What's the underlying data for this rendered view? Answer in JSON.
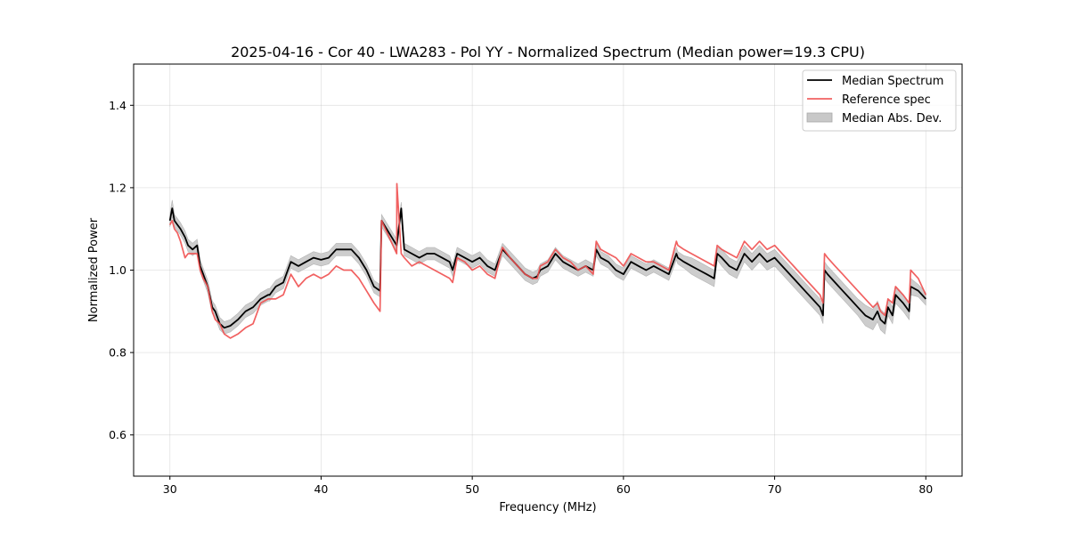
{
  "chart_data": {
    "type": "line",
    "title": "2025-04-16 - Cor 40 - LWA283 - Pol YY - Normalized Spectrum (Median power=19.3 CPU)",
    "xlabel": "Frequency (MHz)",
    "ylabel": "Normalized Power",
    "xlim": [
      27.6,
      82.4
    ],
    "ylim": [
      0.5,
      1.5
    ],
    "xticks": [
      30,
      40,
      50,
      60,
      70,
      80
    ],
    "yticks": [
      0.6,
      0.8,
      1.0,
      1.2,
      1.4
    ],
    "xtick_labels": [
      "30",
      "40",
      "50",
      "60",
      "70",
      "80"
    ],
    "ytick_labels": [
      "0.6",
      "0.8",
      "1.0",
      "1.2",
      "1.4"
    ],
    "grid": true,
    "legend": {
      "placement": "upper-right",
      "entries": [
        "Median Spectrum",
        "Reference spec",
        "Median Abs. Dev."
      ]
    },
    "colors": {
      "median": "#000000",
      "reference": "#f05050",
      "mad_band": "#c8c8c8"
    },
    "series": [
      {
        "name": "Median Spectrum",
        "x": [
          30.0,
          30.15,
          30.3,
          30.5,
          30.7,
          31.0,
          31.2,
          31.5,
          31.8,
          32.0,
          32.2,
          32.5,
          32.8,
          33.0,
          33.3,
          33.6,
          34.0,
          34.5,
          35.0,
          35.5,
          36.0,
          36.5,
          36.6,
          37.0,
          37.5,
          37.6,
          38.0,
          38.5,
          39.0,
          39.5,
          40.0,
          40.5,
          41.0,
          41.5,
          42.0,
          42.5,
          43.0,
          43.5,
          43.9,
          44.0,
          44.5,
          45.0,
          45.3,
          45.5,
          46.0,
          46.5,
          47.0,
          47.5,
          48.0,
          48.5,
          48.7,
          49.0,
          49.5,
          50.0,
          50.5,
          51.0,
          51.5,
          52.0,
          52.5,
          53.0,
          53.5,
          54.0,
          54.3,
          54.5,
          55.0,
          55.5,
          56.0,
          56.5,
          57.0,
          57.5,
          58.0,
          58.2,
          58.5,
          59.0,
          59.5,
          60.0,
          60.5,
          61.0,
          61.5,
          62.0,
          62.5,
          63.0,
          63.5,
          63.6,
          64.0,
          64.5,
          65.0,
          65.5,
          66.0,
          66.2,
          66.5,
          67.0,
          67.5,
          68.0,
          68.5,
          69.0,
          69.5,
          70.0,
          70.5,
          71.0,
          71.5,
          72.0,
          72.5,
          73.0,
          73.2,
          73.3,
          73.5,
          74.0,
          74.5,
          75.0,
          75.5,
          76.0,
          76.5,
          76.8,
          77.0,
          77.3,
          77.5,
          77.8,
          78.0,
          78.5,
          78.9,
          79.0,
          79.5,
          80.0
        ],
        "y": [
          1.12,
          1.15,
          1.12,
          1.11,
          1.1,
          1.08,
          1.06,
          1.05,
          1.06,
          1.01,
          0.99,
          0.96,
          0.91,
          0.9,
          0.87,
          0.86,
          0.865,
          0.88,
          0.9,
          0.91,
          0.93,
          0.94,
          0.94,
          0.96,
          0.97,
          0.98,
          1.02,
          1.01,
          1.02,
          1.03,
          1.025,
          1.03,
          1.05,
          1.05,
          1.05,
          1.03,
          1.0,
          0.96,
          0.95,
          1.12,
          1.09,
          1.06,
          1.15,
          1.05,
          1.04,
          1.03,
          1.04,
          1.04,
          1.03,
          1.02,
          1.0,
          1.04,
          1.03,
          1.02,
          1.03,
          1.01,
          1.0,
          1.05,
          1.03,
          1.01,
          0.99,
          0.98,
          0.985,
          1.0,
          1.01,
          1.04,
          1.02,
          1.01,
          1.0,
          1.01,
          1.0,
          1.05,
          1.03,
          1.02,
          1.0,
          0.99,
          1.02,
          1.01,
          1.0,
          1.01,
          1.0,
          0.99,
          1.04,
          1.03,
          1.02,
          1.01,
          1.0,
          0.99,
          0.98,
          1.04,
          1.03,
          1.01,
          1.0,
          1.04,
          1.02,
          1.04,
          1.02,
          1.03,
          1.01,
          0.99,
          0.97,
          0.95,
          0.93,
          0.91,
          0.89,
          1.0,
          0.99,
          0.97,
          0.95,
          0.93,
          0.91,
          0.89,
          0.88,
          0.9,
          0.88,
          0.87,
          0.91,
          0.89,
          0.94,
          0.92,
          0.9,
          0.96,
          0.95,
          0.93
        ]
      },
      {
        "name": "Reference spec",
        "x": [
          30.0,
          30.15,
          30.3,
          30.5,
          30.7,
          31.0,
          31.2,
          31.5,
          31.8,
          32.0,
          32.2,
          32.5,
          32.8,
          33.0,
          33.3,
          33.6,
          34.0,
          34.5,
          35.0,
          35.5,
          36.0,
          36.5,
          36.6,
          37.0,
          37.5,
          37.6,
          38.0,
          38.5,
          39.0,
          39.5,
          40.0,
          40.5,
          41.0,
          41.5,
          42.0,
          42.5,
          43.0,
          43.5,
          43.9,
          44.0,
          44.5,
          45.0,
          45.01,
          45.3,
          45.5,
          46.0,
          46.5,
          47.0,
          47.5,
          48.0,
          48.5,
          48.7,
          49.0,
          49.5,
          50.0,
          50.5,
          51.0,
          51.5,
          52.0,
          52.5,
          53.0,
          53.5,
          54.0,
          54.3,
          54.5,
          55.0,
          55.5,
          56.0,
          56.5,
          57.0,
          57.5,
          58.0,
          58.2,
          58.5,
          59.0,
          59.5,
          60.0,
          60.5,
          61.0,
          61.5,
          62.0,
          62.5,
          63.0,
          63.5,
          63.6,
          64.0,
          64.5,
          65.0,
          65.5,
          66.0,
          66.2,
          66.5,
          67.0,
          67.5,
          68.0,
          68.5,
          69.0,
          69.5,
          70.0,
          70.5,
          71.0,
          71.5,
          72.0,
          72.5,
          73.0,
          73.2,
          73.3,
          73.5,
          74.0,
          74.5,
          75.0,
          75.5,
          76.0,
          76.5,
          76.8,
          77.0,
          77.3,
          77.5,
          77.8,
          78.0,
          78.5,
          78.9,
          79.0,
          79.5,
          80.0
        ],
        "y": [
          1.11,
          1.12,
          1.1,
          1.09,
          1.07,
          1.03,
          1.04,
          1.04,
          1.04,
          1.0,
          0.98,
          0.96,
          0.9,
          0.88,
          0.87,
          0.845,
          0.835,
          0.845,
          0.86,
          0.87,
          0.92,
          0.93,
          0.93,
          0.93,
          0.94,
          0.95,
          0.99,
          0.96,
          0.98,
          0.99,
          0.98,
          0.99,
          1.01,
          1.0,
          1.0,
          0.98,
          0.95,
          0.92,
          0.9,
          1.12,
          1.08,
          1.04,
          1.21,
          1.04,
          1.03,
          1.01,
          1.02,
          1.01,
          1.0,
          0.99,
          0.98,
          0.97,
          1.03,
          1.02,
          1.0,
          1.01,
          0.99,
          0.98,
          1.055,
          1.03,
          1.01,
          0.99,
          0.98,
          0.98,
          1.01,
          1.02,
          1.05,
          1.03,
          1.02,
          1.0,
          1.01,
          0.99,
          1.07,
          1.05,
          1.04,
          1.03,
          1.01,
          1.04,
          1.03,
          1.02,
          1.02,
          1.01,
          1.0,
          1.07,
          1.06,
          1.05,
          1.04,
          1.03,
          1.02,
          1.01,
          1.06,
          1.05,
          1.04,
          1.03,
          1.07,
          1.05,
          1.07,
          1.05,
          1.06,
          1.04,
          1.02,
          1.0,
          0.98,
          0.96,
          0.94,
          0.92,
          1.04,
          1.03,
          1.01,
          0.99,
          0.97,
          0.95,
          0.93,
          0.91,
          0.92,
          0.9,
          0.89,
          0.93,
          0.92,
          0.96,
          0.94,
          0.92,
          1.0,
          0.98,
          0.94
        ]
      },
      {
        "name": "Median Abs. Dev.",
        "x": [
          30.0,
          30.15,
          30.3,
          30.5,
          30.7,
          31.0,
          31.2,
          31.5,
          31.8,
          32.0,
          32.2,
          32.5,
          32.8,
          33.0,
          33.3,
          33.6,
          34.0,
          34.5,
          35.0,
          35.5,
          36.0,
          36.5,
          36.6,
          37.0,
          37.5,
          37.6,
          38.0,
          38.5,
          39.0,
          39.5,
          40.0,
          40.5,
          41.0,
          41.5,
          42.0,
          42.5,
          43.0,
          43.5,
          43.9,
          44.0,
          44.5,
          45.0,
          45.3,
          45.5,
          46.0,
          46.5,
          47.0,
          47.5,
          48.0,
          48.5,
          48.7,
          49.0,
          49.5,
          50.0,
          50.5,
          51.0,
          51.5,
          52.0,
          52.5,
          53.0,
          53.5,
          54.0,
          54.3,
          54.5,
          55.0,
          55.5,
          56.0,
          56.5,
          57.0,
          57.5,
          58.0,
          58.2,
          58.5,
          59.0,
          59.5,
          60.0,
          60.5,
          61.0,
          61.5,
          62.0,
          62.5,
          63.0,
          63.5,
          63.6,
          64.0,
          64.5,
          65.0,
          65.5,
          66.0,
          66.2,
          66.5,
          67.0,
          67.5,
          68.0,
          68.5,
          69.0,
          69.5,
          70.0,
          70.5,
          71.0,
          71.5,
          72.0,
          72.5,
          73.0,
          73.2,
          73.3,
          73.5,
          74.0,
          74.5,
          75.0,
          75.5,
          76.0,
          76.5,
          76.8,
          77.0,
          77.3,
          77.5,
          77.8,
          78.0,
          78.5,
          78.9,
          79.0,
          79.5,
          80.0
        ],
        "y_lower": [
          1.105,
          1.13,
          1.105,
          1.095,
          1.085,
          1.065,
          1.045,
          1.035,
          1.045,
          0.995,
          0.975,
          0.945,
          0.895,
          0.885,
          0.855,
          0.845,
          0.85,
          0.865,
          0.885,
          0.895,
          0.915,
          0.925,
          0.925,
          0.945,
          0.955,
          0.965,
          1.005,
          0.995,
          1.005,
          1.015,
          1.01,
          1.015,
          1.035,
          1.035,
          1.035,
          1.015,
          0.985,
          0.945,
          0.935,
          1.105,
          1.075,
          1.045,
          1.135,
          1.035,
          1.025,
          1.015,
          1.025,
          1.025,
          1.015,
          1.005,
          0.985,
          1.025,
          1.015,
          1.005,
          1.015,
          0.995,
          0.985,
          1.035,
          1.015,
          0.995,
          0.975,
          0.965,
          0.97,
          0.985,
          0.995,
          1.025,
          1.005,
          0.995,
          0.985,
          0.995,
          0.985,
          1.035,
          1.015,
          1.005,
          0.985,
          0.975,
          1.005,
          0.995,
          0.985,
          0.995,
          0.985,
          0.975,
          1.025,
          1.015,
          1.005,
          0.99,
          0.98,
          0.97,
          0.96,
          1.025,
          1.01,
          0.99,
          0.98,
          1.02,
          1.0,
          1.02,
          1.0,
          1.01,
          0.99,
          0.97,
          0.95,
          0.93,
          0.91,
          0.89,
          0.87,
          0.98,
          0.97,
          0.95,
          0.93,
          0.91,
          0.89,
          0.865,
          0.855,
          0.875,
          0.855,
          0.845,
          0.89,
          0.87,
          0.92,
          0.9,
          0.88,
          0.94,
          0.935,
          0.915
        ],
        "y_upper": [
          1.135,
          1.17,
          1.135,
          1.125,
          1.115,
          1.095,
          1.075,
          1.065,
          1.075,
          1.025,
          1.005,
          0.975,
          0.925,
          0.915,
          0.885,
          0.875,
          0.88,
          0.895,
          0.915,
          0.925,
          0.945,
          0.955,
          0.955,
          0.975,
          0.985,
          0.995,
          1.035,
          1.025,
          1.035,
          1.045,
          1.04,
          1.045,
          1.065,
          1.065,
          1.065,
          1.045,
          1.015,
          0.975,
          0.965,
          1.135,
          1.105,
          1.075,
          1.165,
          1.065,
          1.055,
          1.045,
          1.055,
          1.055,
          1.045,
          1.035,
          1.015,
          1.055,
          1.045,
          1.035,
          1.045,
          1.025,
          1.015,
          1.065,
          1.045,
          1.025,
          1.005,
          0.995,
          1.0,
          1.015,
          1.025,
          1.055,
          1.035,
          1.025,
          1.015,
          1.025,
          1.015,
          1.065,
          1.045,
          1.035,
          1.015,
          1.005,
          1.035,
          1.025,
          1.015,
          1.025,
          1.015,
          1.005,
          1.055,
          1.045,
          1.035,
          1.03,
          1.02,
          1.01,
          1.0,
          1.055,
          1.05,
          1.03,
          1.02,
          1.06,
          1.04,
          1.06,
          1.04,
          1.05,
          1.03,
          1.01,
          0.99,
          0.97,
          0.95,
          0.93,
          0.91,
          1.02,
          1.01,
          0.99,
          0.97,
          0.95,
          0.93,
          0.915,
          0.905,
          0.925,
          0.905,
          0.895,
          0.93,
          0.91,
          0.96,
          0.94,
          0.92,
          0.98,
          0.965,
          0.945
        ]
      }
    ]
  }
}
